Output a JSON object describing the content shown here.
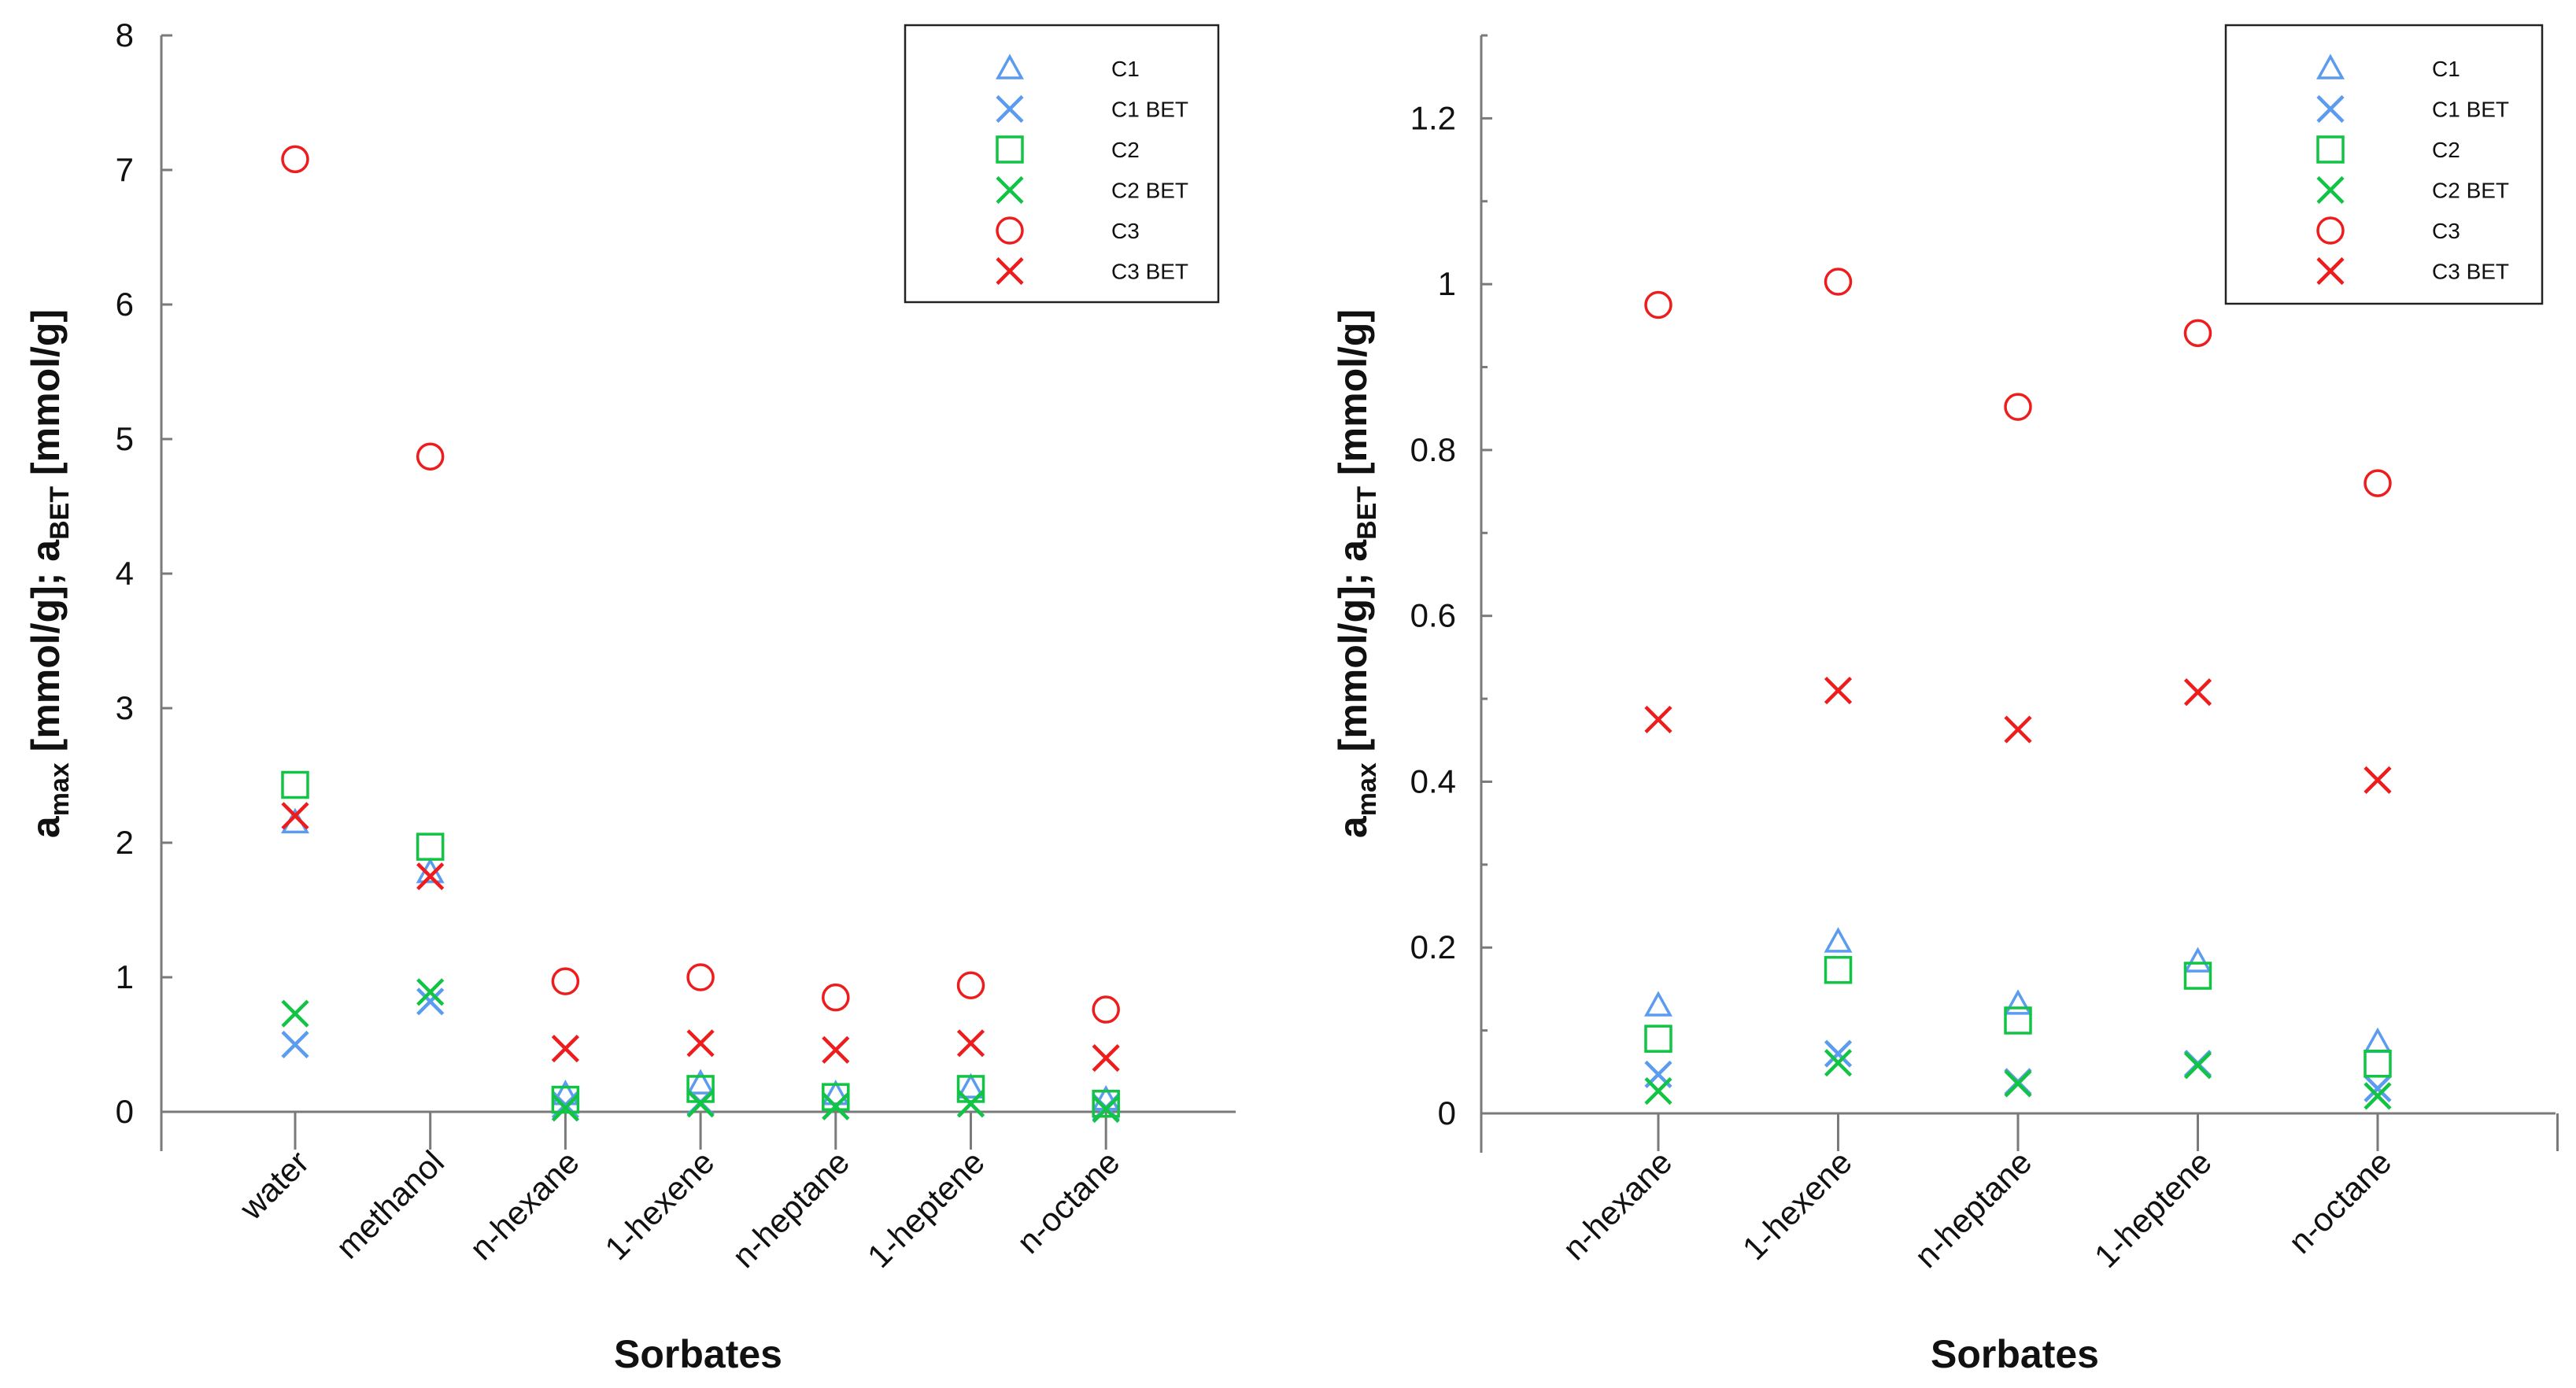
{
  "colors": {
    "C1": "#5b9bf0",
    "C1 BET": "#5b9bf0",
    "C2": "#11c444",
    "C2 BET": "#11c444",
    "C3": "#ee1c1c",
    "C3 BET": "#ee1c1c",
    "axis": "#7a7a7a",
    "text": "#111111"
  },
  "chart_data": [
    {
      "type": "scatter",
      "xlabel": "Sorbates",
      "ylabel_main": "a",
      "ylabel_sub1": "max",
      "ylabel_mid": " [mmol/g]; a",
      "ylabel_sub2": "BET",
      "ylabel_end": " [mmol/g]",
      "categories": [
        "water",
        "methanol",
        "n-hexane",
        "1-hexene",
        "n-heptane",
        "1-heptene",
        "n-octane"
      ],
      "ylim": [
        0,
        8
      ],
      "yticks": [
        0,
        1,
        2,
        3,
        4,
        5,
        6,
        7,
        8
      ],
      "ytick_labels": [
        "0",
        "1",
        "2",
        "3",
        "4",
        "5",
        "6",
        "7",
        "8"
      ],
      "legend_position": "top-right",
      "series": [
        {
          "name": "C1",
          "marker": "triangle",
          "values": [
            2.15,
            1.78,
            0.13,
            0.21,
            0.13,
            0.18,
            0.09
          ]
        },
        {
          "name": "C1 BET",
          "marker": "x",
          "values": [
            0.5,
            0.82,
            0.05,
            0.07,
            0.04,
            0.06,
            0.03
          ]
        },
        {
          "name": "C2",
          "marker": "square",
          "values": [
            2.43,
            1.97,
            0.09,
            0.17,
            0.11,
            0.17,
            0.06
          ]
        },
        {
          "name": "C2 BET",
          "marker": "x",
          "values": [
            0.73,
            0.89,
            0.03,
            0.06,
            0.04,
            0.06,
            0.02
          ]
        },
        {
          "name": "C3",
          "marker": "circle",
          "values": [
            7.08,
            4.87,
            0.97,
            1.0,
            0.85,
            0.94,
            0.76
          ]
        },
        {
          "name": "C3 BET",
          "marker": "x",
          "values": [
            2.2,
            1.75,
            0.47,
            0.51,
            0.46,
            0.51,
            0.4
          ]
        }
      ]
    },
    {
      "type": "scatter",
      "xlabel": "Sorbates",
      "ylabel_main": "a",
      "ylabel_sub1": "max",
      "ylabel_mid": " [mmol/g]; a",
      "ylabel_sub2": "BET",
      "ylabel_end": " [mmol/g]",
      "categories": [
        "n-hexane",
        "1-hexene",
        "n-heptane",
        "1-heptene",
        "n-octane"
      ],
      "ylim": [
        0,
        1.3
      ],
      "yticks": [
        0,
        0.2,
        0.4,
        0.6,
        0.8,
        1.0,
        1.2
      ],
      "ytick_labels": [
        "0",
        "0.2",
        "0.4",
        "0.6",
        "0.8",
        "1",
        "1.2"
      ],
      "legend_position": "top-right",
      "series": [
        {
          "name": "C1",
          "marker": "triangle",
          "values": [
            0.13,
            0.207,
            0.132,
            0.183,
            0.086
          ]
        },
        {
          "name": "C1 BET",
          "marker": "x",
          "values": [
            0.047,
            0.072,
            0.038,
            0.06,
            0.03
          ]
        },
        {
          "name": "C2",
          "marker": "square",
          "values": [
            0.09,
            0.173,
            0.112,
            0.166,
            0.06
          ]
        },
        {
          "name": "C2 BET",
          "marker": "x",
          "values": [
            0.027,
            0.061,
            0.036,
            0.058,
            0.021
          ]
        },
        {
          "name": "C3",
          "marker": "circle",
          "values": [
            0.975,
            1.003,
            0.852,
            0.941,
            0.76
          ]
        },
        {
          "name": "C3 BET",
          "marker": "x",
          "values": [
            0.475,
            0.51,
            0.463,
            0.508,
            0.402
          ]
        }
      ]
    }
  ]
}
